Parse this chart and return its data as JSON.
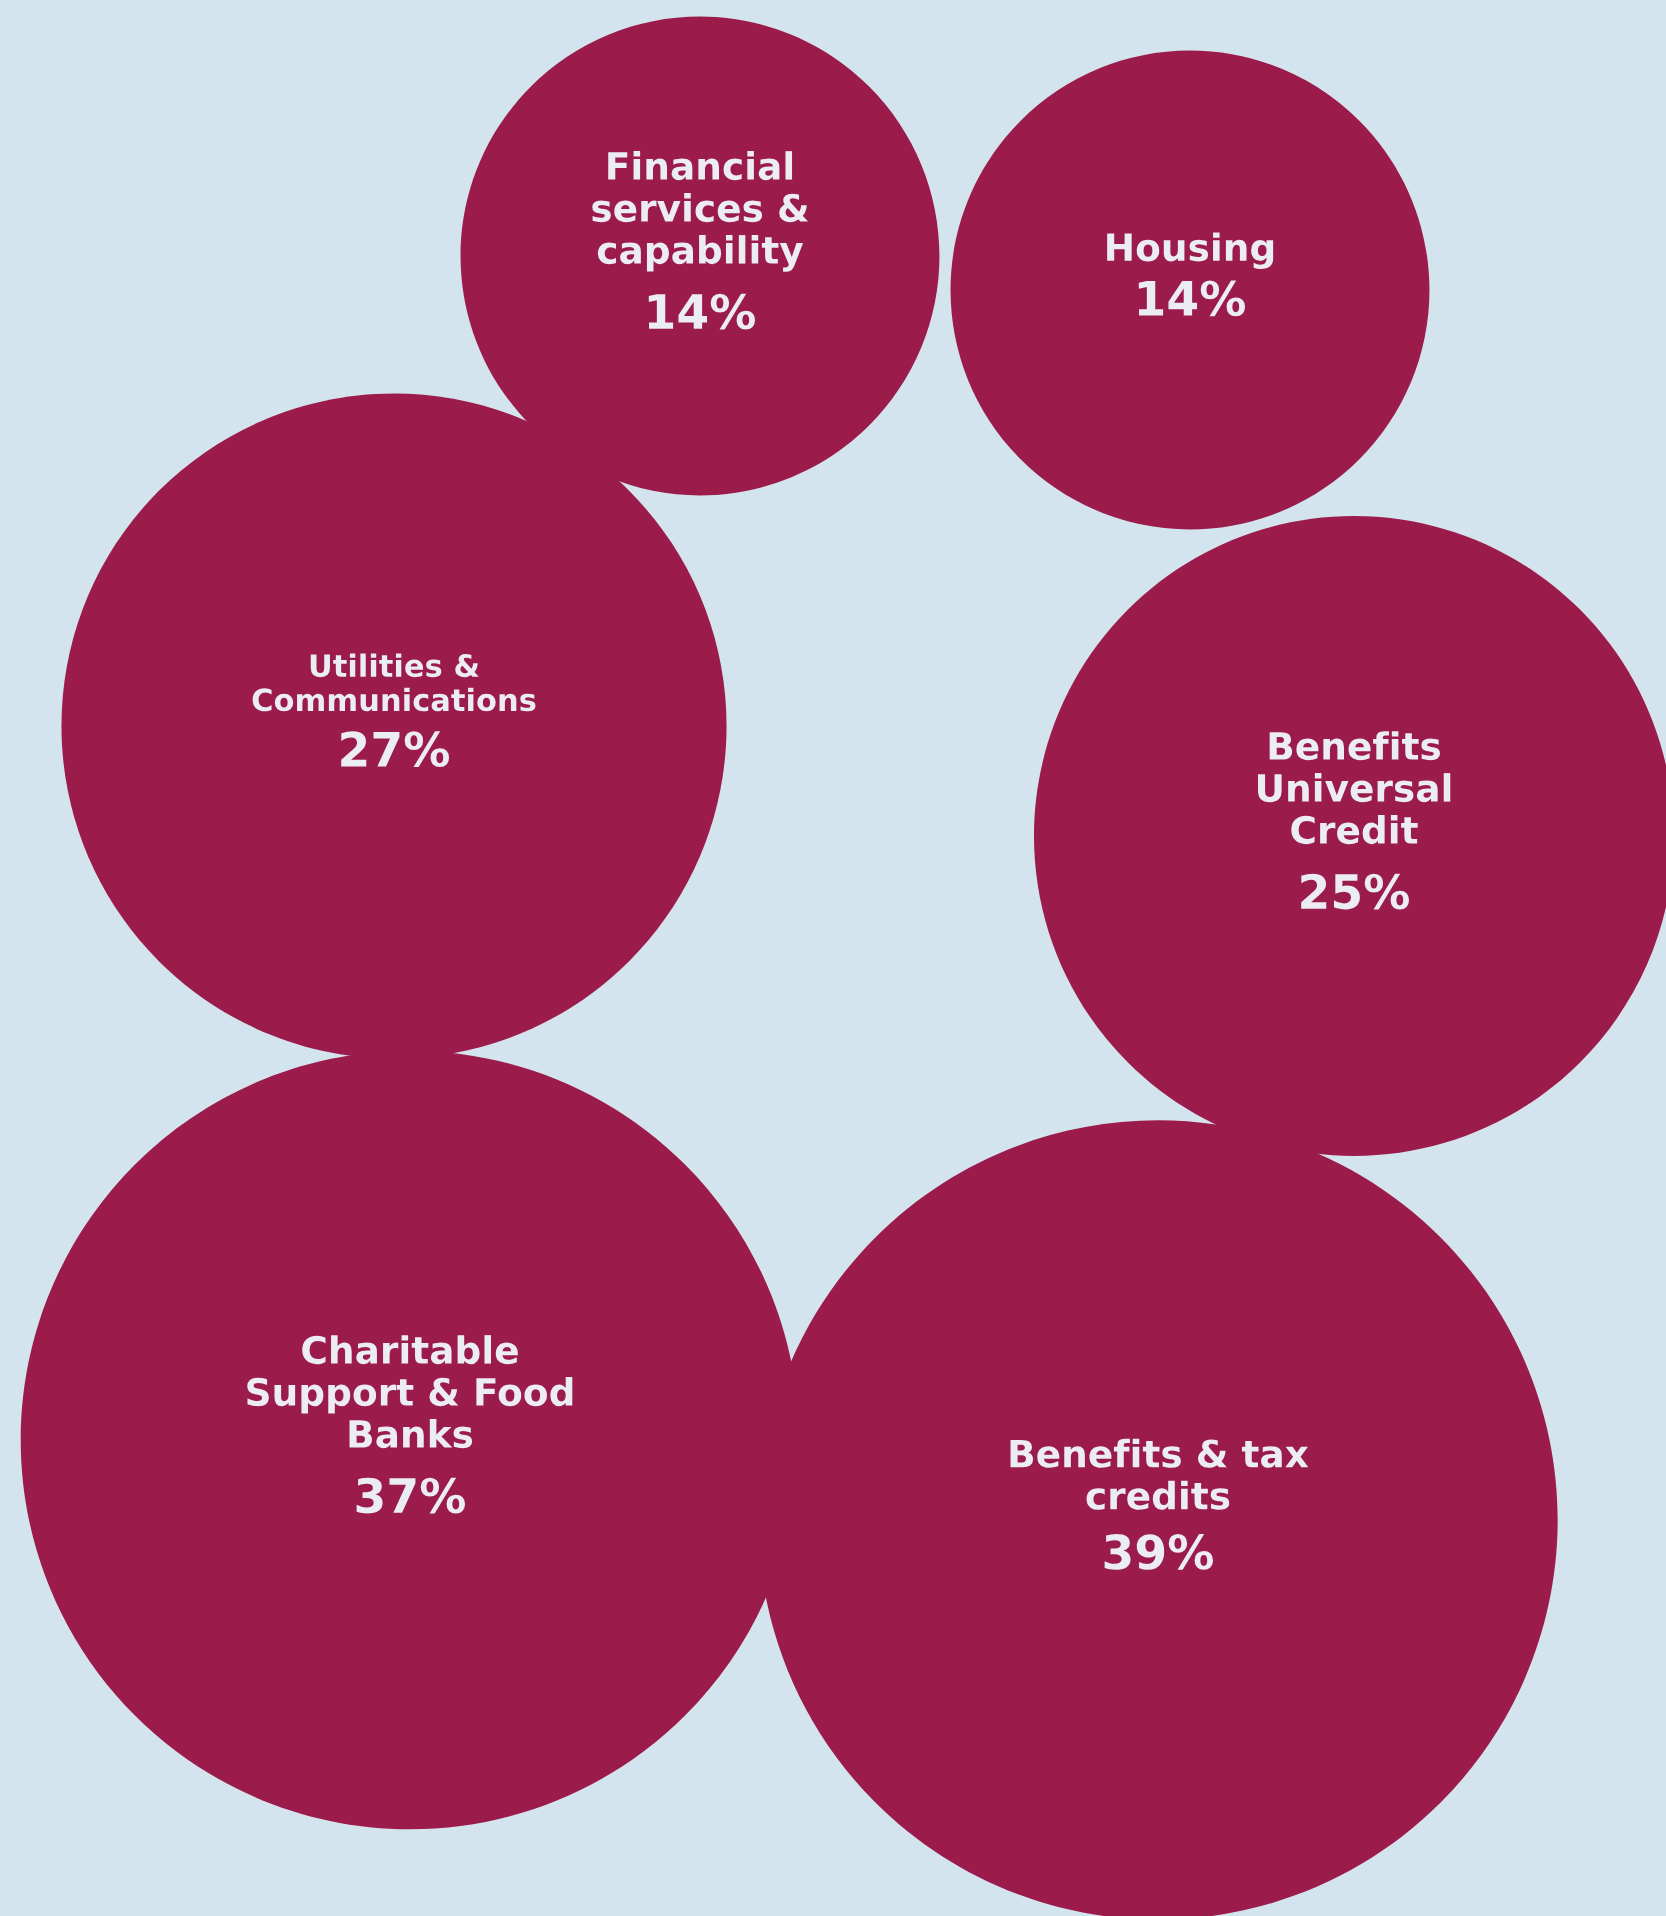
{
  "chart_data": {
    "type": "other",
    "categories": [
      "Financial\nservices &\ncapability",
      "Housing",
      "Utilities &\nCommunications",
      "Benefits\nUniversal\nCredit",
      "Charitable\nSupport & Food\nBanks",
      "Benefits & tax\ncredits"
    ],
    "values": [
      14,
      14,
      27,
      25,
      37,
      39
    ],
    "value_labels": [
      "14%",
      "14%",
      "27%",
      "25%",
      "37%",
      "39%"
    ],
    "color": "#9b1c4b"
  }
}
